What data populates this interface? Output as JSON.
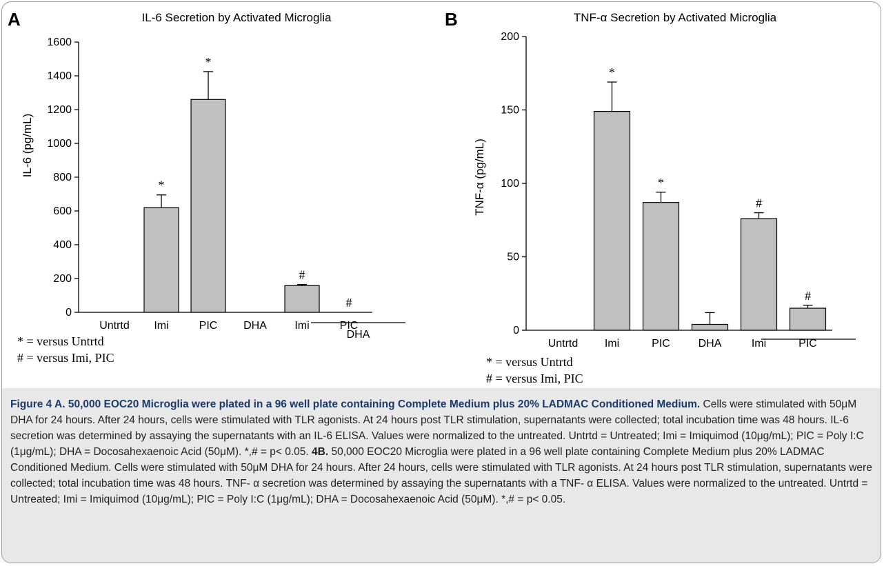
{
  "chart_data": [
    {
      "panel": "A",
      "type": "bar",
      "title": "IL-6 Secretion by Activated Microglia",
      "ylabel": "IL-6 (pg/mL)",
      "xlabel": "",
      "ylim": [
        0,
        1600
      ],
      "yticks": [
        0,
        200,
        400,
        600,
        800,
        1000,
        1200,
        1400,
        1600
      ],
      "categories": [
        "Untrtd",
        "Imi",
        "PIC",
        "DHA",
        "Imi",
        "PIC"
      ],
      "group_label": "DHA",
      "values": [
        0,
        620,
        1260,
        0,
        158,
        0
      ],
      "errors": [
        0,
        75,
        165,
        0,
        7,
        0
      ],
      "annotations": [
        "",
        "*",
        "*",
        "",
        "#",
        "#"
      ],
      "grid": false,
      "bar_color": "#c0c0c0"
    },
    {
      "panel": "B",
      "type": "bar",
      "title": "TNF-α Secretion by Activated Microglia",
      "ylabel": "TNF-α (pg/mL)",
      "xlabel": "",
      "ylim": [
        0,
        200
      ],
      "yticks": [
        0,
        50,
        100,
        150,
        200
      ],
      "categories": [
        "Untrtd",
        "Imi",
        "PIC",
        "DHA",
        "Imi",
        "PIC"
      ],
      "group_label": "DHA",
      "values": [
        0,
        149,
        87,
        4,
        76,
        15
      ],
      "errors": [
        0,
        20,
        7,
        8,
        4,
        2
      ],
      "annotations": [
        "",
        "*",
        "*",
        "",
        "#",
        "#"
      ],
      "grid": false,
      "bar_color": "#c0c0c0"
    }
  ],
  "footnotes": {
    "A": {
      "line1": "* = versus Untrtd",
      "line2": "# = versus Imi, PIC"
    },
    "B": {
      "line1": "* = versus Untrtd",
      "line2": "# = versus Imi, PIC"
    }
  },
  "caption": {
    "bold_text": "Figure 4 A. 50,000 EOC20 Microglia were plated in a 96 well plate containing Complete Medium plus 20% LADMAC Conditioned Medium.",
    "text1": " Cells were stimulated with 50μM DHA for 24 hours. After 24 hours, cells were stimulated with TLR agonists. At 24 hours post TLR stimulation, supernatants were collected; total incubation time was 48 hours. IL-6 secretion was determined by assaying the supernatants with an IL-6 ELISA. Values were normalized to the untreated. Untrtd = Untreated; Imi = Imiquimod (10μg/mL); PIC = Poly I:C (1μg/mL); DHA = Docosahexaenoic Acid (50μM). *,# = p< 0.05. ",
    "bold_ref": "4B.",
    "text2": " 50,000 EOC20 Microglia were plated in a 96 well plate containing Complete Medium plus 20% LADMAC Conditioned Medium. Cells were stimulated with 50μM DHA for 24 hours. After 24 hours, cells were stimulated with TLR agonists. At 24 hours post TLR stimulation, supernatants were collected; total incubation time was 48 hours. TNF- α secretion was determined by assaying the supernatants with a TNF- α ELISA. Values were normalized to the untreated. Untrtd = Untreated; Imi = Imiquimod (10μg/mL); PIC = Poly I:C (1μg/mL); DHA = Docosahexaenoic Acid (50μM). *,# = p< 0.05."
  }
}
